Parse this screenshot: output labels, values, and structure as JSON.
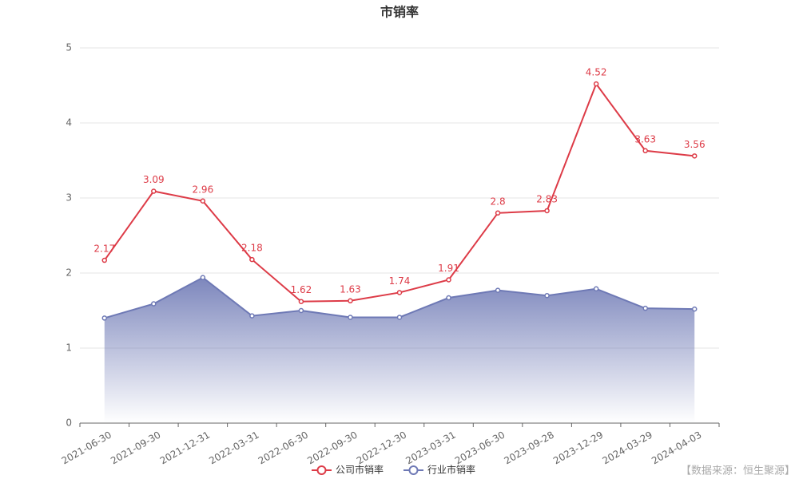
{
  "chart_data": {
    "type": "line",
    "title": "市销率",
    "categories": [
      "2021-06-30",
      "2021-09-30",
      "2021-12-31",
      "2022-03-31",
      "2022-06-30",
      "2022-09-30",
      "2022-12-30",
      "2023-03-31",
      "2023-06-30",
      "2023-09-28",
      "2023-12-29",
      "2024-03-29",
      "2024-04-03"
    ],
    "series": [
      {
        "name": "公司市销率",
        "color": "#dd3b47",
        "values": [
          2.17,
          3.09,
          2.96,
          2.18,
          1.62,
          1.63,
          1.74,
          1.91,
          2.8,
          2.83,
          4.52,
          3.63,
          3.56
        ],
        "labels": true,
        "area": false
      },
      {
        "name": "行业市销率",
        "color": "#6e79b5",
        "values": [
          1.4,
          1.59,
          1.94,
          1.43,
          1.5,
          1.41,
          1.41,
          1.67,
          1.77,
          1.7,
          1.79,
          1.53,
          1.52
        ],
        "labels": false,
        "area": true
      }
    ],
    "ylim": [
      0,
      5
    ],
    "yticks": [
      0,
      1,
      2,
      3,
      4,
      5
    ],
    "grid": true,
    "source": "【数据来源：恒生聚源】"
  }
}
